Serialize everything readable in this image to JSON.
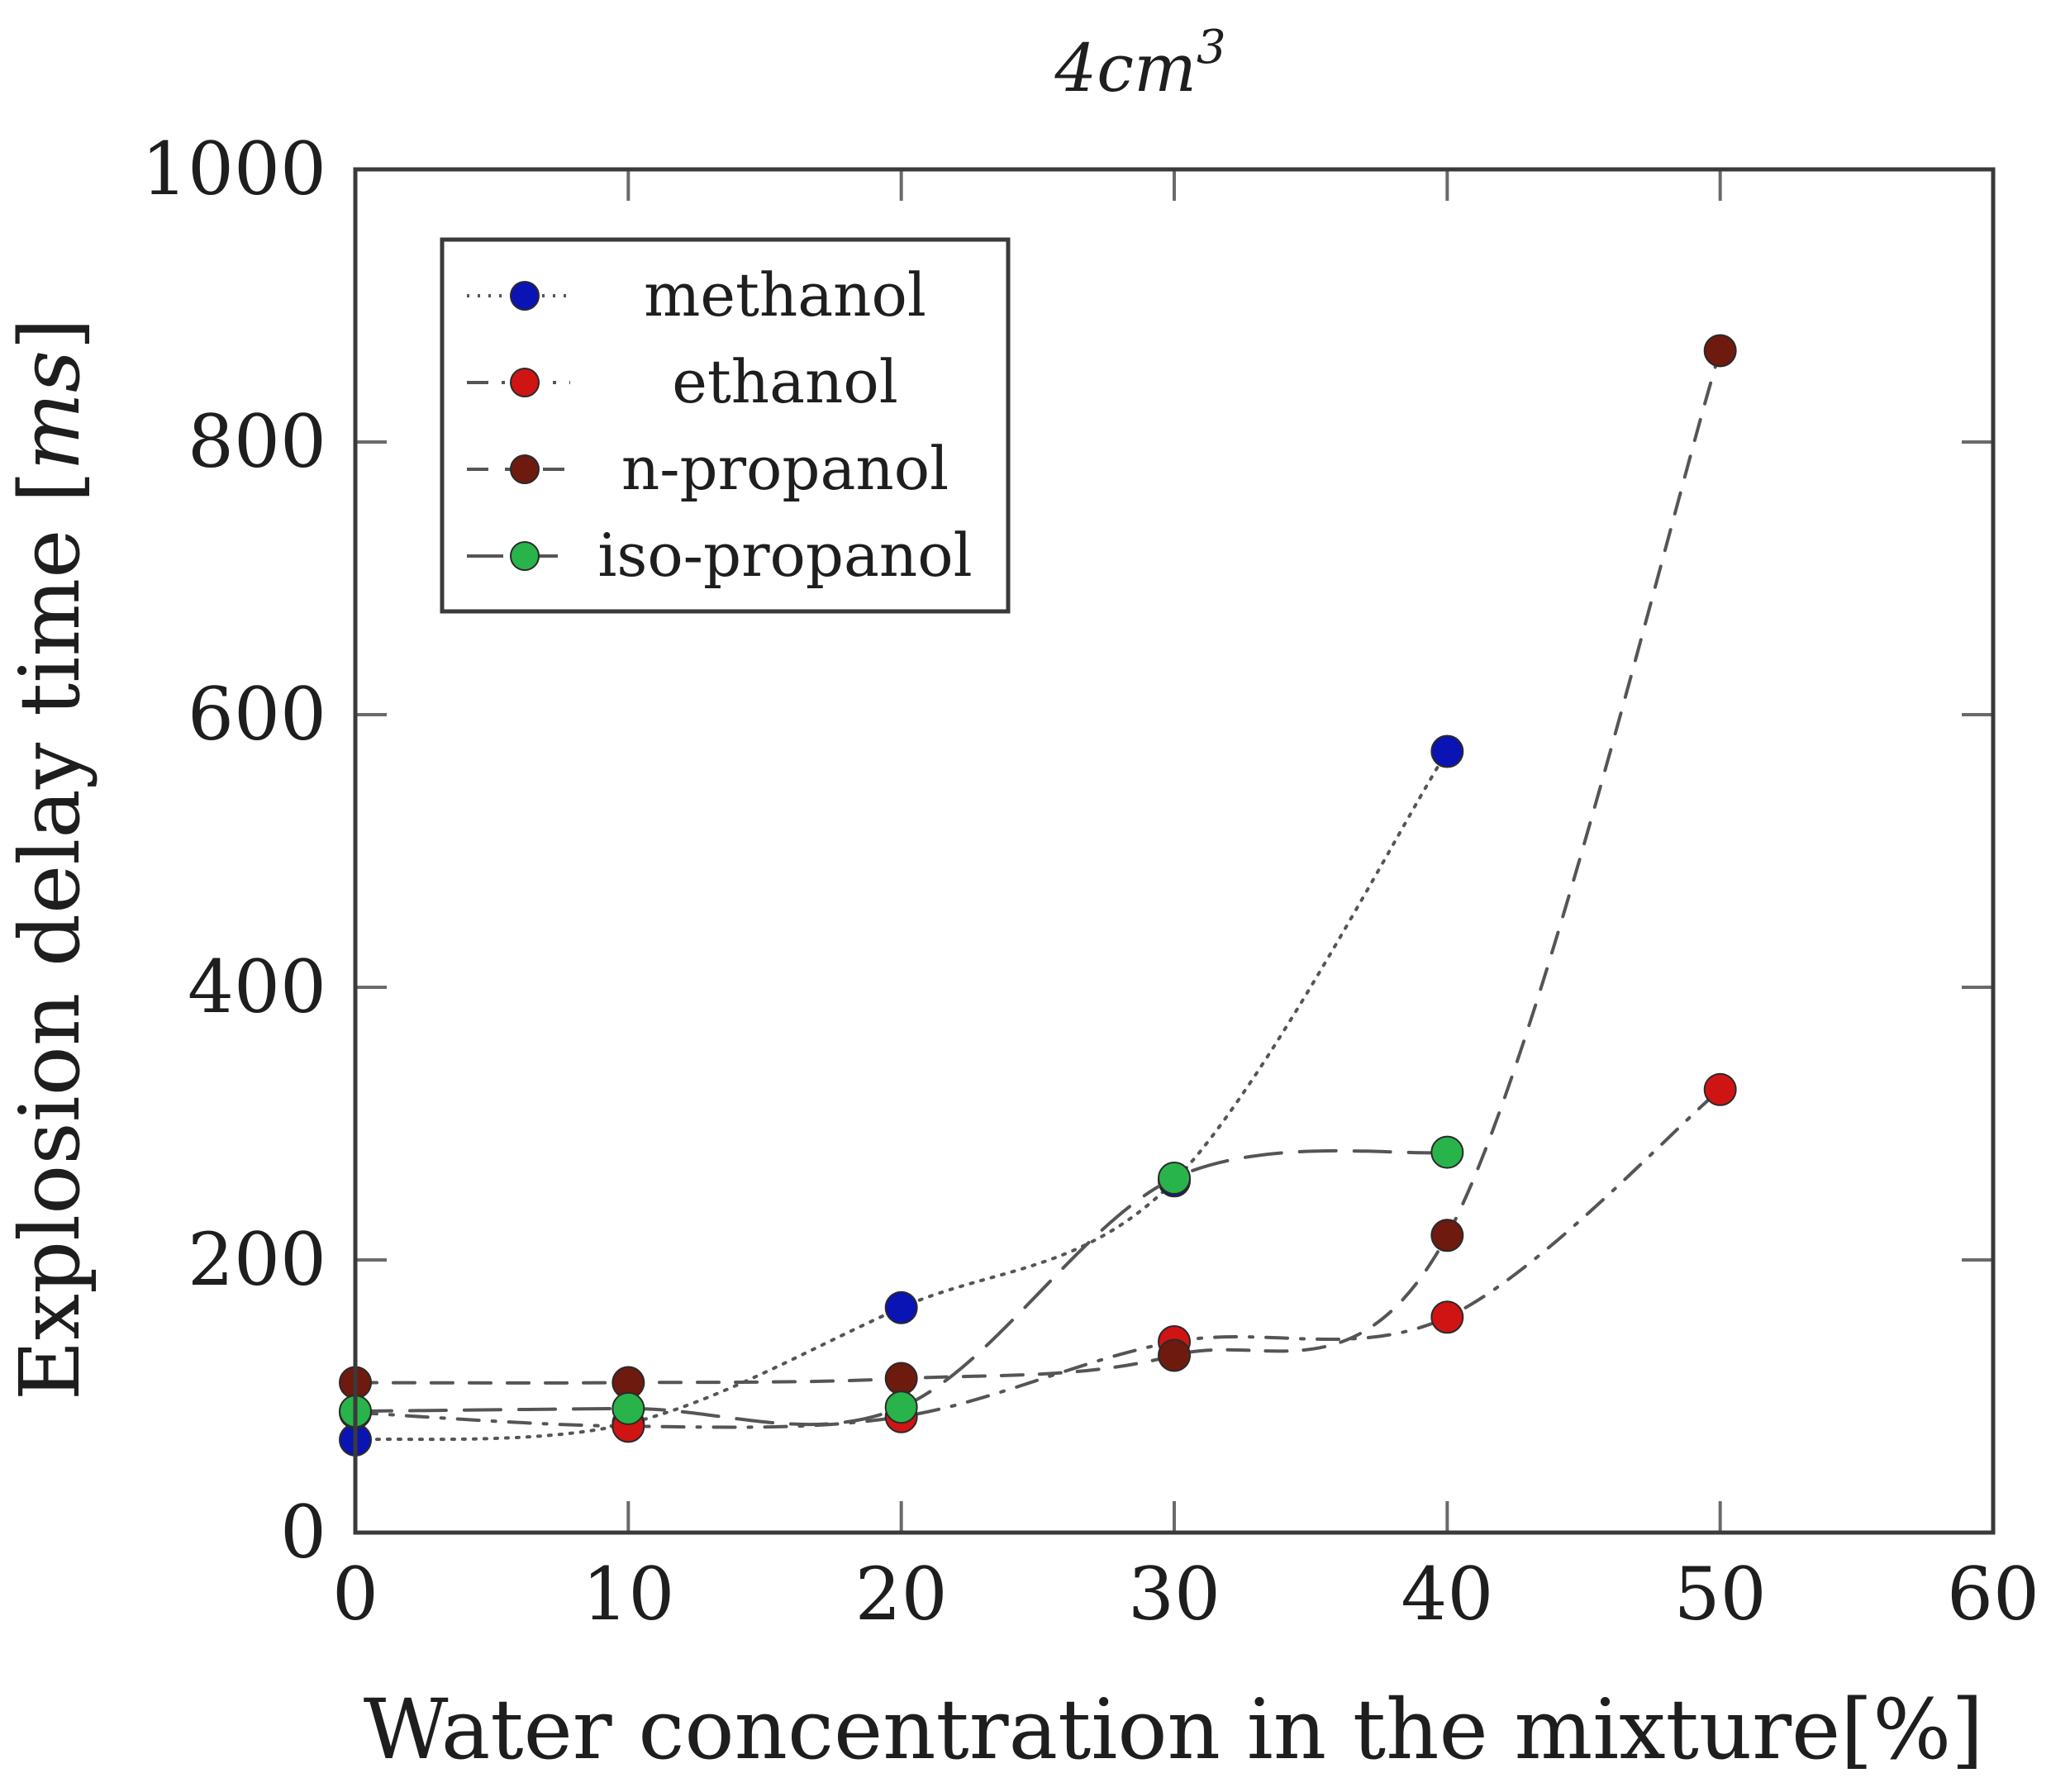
{
  "chart_data": {
    "type": "line",
    "title": {
      "base": "4cm",
      "sup": "3"
    },
    "xlabel": "Water concentration in the mixture[%]",
    "ylabel": {
      "prefix": "Explosion delay time [",
      "unit": "ms",
      "suffix": "]"
    },
    "xlim": [
      0,
      60
    ],
    "ylim": [
      0,
      1000
    ],
    "xticks": [
      0,
      10,
      20,
      30,
      40,
      50,
      60
    ],
    "yticks": [
      0,
      200,
      400,
      600,
      800,
      1000
    ],
    "xtick_labels": [
      "0",
      "10",
      "20",
      "30",
      "40",
      "50",
      "60"
    ],
    "ytick_labels": [
      "0",
      "200",
      "400",
      "600",
      "800",
      "1000"
    ],
    "legend_position": "top-left",
    "series": [
      {
        "name": "methanol",
        "color": "#0a14b4",
        "line_style": "dotted",
        "x": [
          0,
          10,
          20,
          30,
          40
        ],
        "y": [
          68,
          80,
          165,
          258,
          573
        ]
      },
      {
        "name": "ethanol",
        "color": "#d01414",
        "line_style": "dash-dot",
        "x": [
          0,
          10,
          20,
          30,
          40,
          50
        ],
        "y": [
          88,
          78,
          85,
          140,
          158,
          325
        ]
      },
      {
        "name": "n-propanol",
        "color": "#6e1a0e",
        "line_style": "dashed",
        "x": [
          0,
          10,
          20,
          30,
          40,
          50
        ],
        "y": [
          110,
          110,
          113,
          130,
          218,
          867
        ]
      },
      {
        "name": "iso-propanol",
        "color": "#28b44a",
        "line_style": "long-dashed",
        "x": [
          0,
          10,
          20,
          30,
          40
        ],
        "y": [
          89,
          91,
          92,
          260,
          279
        ]
      }
    ]
  }
}
